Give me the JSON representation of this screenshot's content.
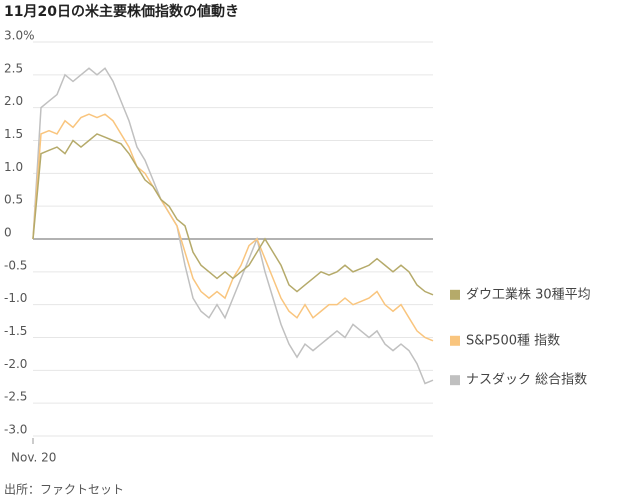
{
  "chart_data": {
    "type": "line",
    "title": "11月20日の米主要株価指数の値動き",
    "source": "出所：ファクトセット",
    "categories": [
      "Nov. 20",
      null,
      null,
      null,
      null,
      null,
      null,
      null,
      null,
      null,
      null,
      null,
      null,
      null,
      null,
      null,
      null,
      null,
      null,
      null,
      null,
      null,
      null,
      null,
      null,
      null,
      null,
      null,
      null,
      null,
      null,
      null,
      null,
      null,
      null,
      null,
      null,
      null,
      null,
      null,
      null,
      null,
      null,
      null,
      null,
      null,
      null,
      null,
      null,
      null,
      null
    ],
    "ylim": [
      -3,
      3
    ],
    "yticks": [
      {
        "value": 3,
        "label": "3.0%"
      },
      2.5,
      {
        "value": 2,
        "label": "2.0"
      },
      1.5,
      {
        "value": 1,
        "label": "1.0"
      },
      0.5,
      0,
      -0.5,
      {
        "value": -1,
        "label": "-1.0"
      },
      -1.5,
      {
        "value": -2,
        "label": "-2.0"
      },
      -2.5,
      {
        "value": -3,
        "label": "-3.0"
      }
    ],
    "grid": true,
    "series": [
      {
        "name": "ダウ工業株 30種平均",
        "color": "#b5aa6a",
        "values": [
          0,
          1.3,
          1.35,
          1.4,
          1.3,
          1.5,
          1.4,
          1.5,
          1.6,
          1.55,
          1.5,
          1.45,
          1.3,
          1.1,
          0.9,
          0.8,
          0.6,
          0.5,
          0.3,
          0.2,
          -0.2,
          -0.4,
          -0.5,
          -0.6,
          -0.5,
          -0.6,
          -0.5,
          -0.4,
          -0.2,
          0,
          -0.2,
          -0.4,
          -0.7,
          -0.8,
          -0.7,
          -0.6,
          -0.5,
          -0.55,
          -0.5,
          -0.4,
          -0.5,
          -0.45,
          -0.4,
          -0.3,
          -0.4,
          -0.5,
          -0.4,
          -0.5,
          -0.7,
          -0.8,
          -0.85
        ]
      },
      {
        "name": "S&P500種 指数",
        "color": "#f9c57e",
        "values": [
          0,
          1.6,
          1.65,
          1.6,
          1.8,
          1.7,
          1.85,
          1.9,
          1.85,
          1.9,
          1.8,
          1.6,
          1.4,
          1.1,
          1.0,
          0.8,
          0.6,
          0.4,
          0.2,
          -0.2,
          -0.6,
          -0.8,
          -0.9,
          -0.8,
          -0.9,
          -0.6,
          -0.4,
          -0.1,
          0,
          -0.3,
          -0.6,
          -0.9,
          -1.1,
          -1.2,
          -1.0,
          -1.2,
          -1.1,
          -1.0,
          -1.0,
          -0.9,
          -1.0,
          -0.95,
          -0.9,
          -0.8,
          -1.0,
          -1.1,
          -1.0,
          -1.2,
          -1.4,
          -1.5,
          -1.55
        ]
      },
      {
        "name": "ナスダック 総合指数",
        "color": "#c0c0c0",
        "values": [
          0,
          2.0,
          2.1,
          2.2,
          2.5,
          2.4,
          2.5,
          2.6,
          2.5,
          2.6,
          2.4,
          2.1,
          1.8,
          1.4,
          1.2,
          0.9,
          0.6,
          0.4,
          0.2,
          -0.4,
          -0.9,
          -1.1,
          -1.2,
          -1.0,
          -1.2,
          -0.9,
          -0.6,
          -0.3,
          0,
          -0.5,
          -0.9,
          -1.3,
          -1.6,
          -1.8,
          -1.6,
          -1.7,
          -1.6,
          -1.5,
          -1.4,
          -1.5,
          -1.3,
          -1.4,
          -1.5,
          -1.4,
          -1.6,
          -1.7,
          -1.6,
          -1.7,
          -1.9,
          -2.2,
          -2.15
        ]
      }
    ]
  }
}
